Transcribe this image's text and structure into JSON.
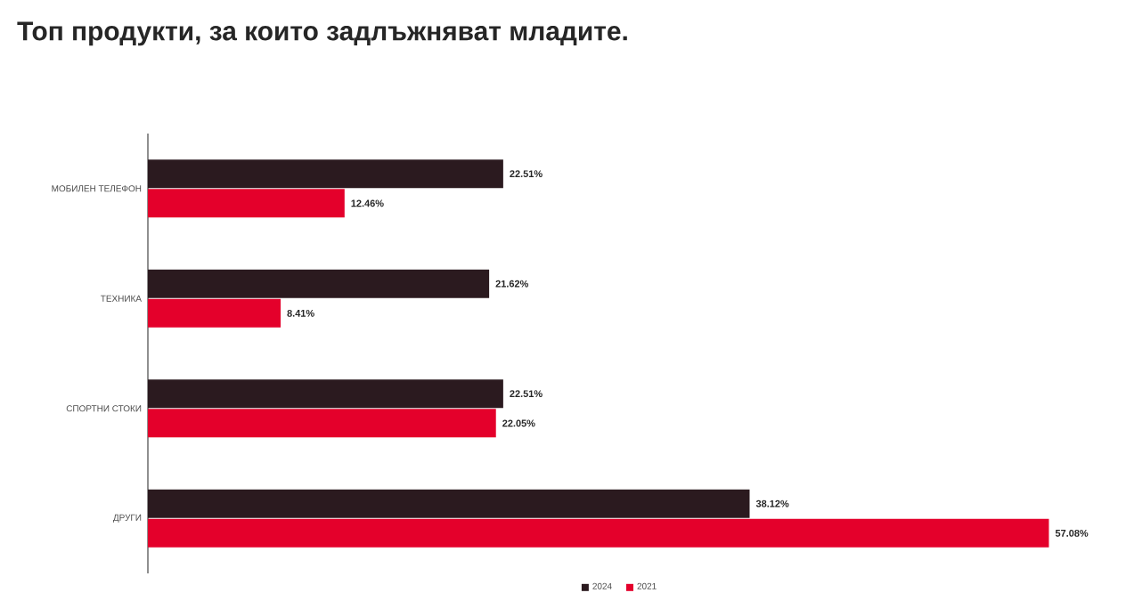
{
  "chart_data": {
    "type": "bar",
    "orientation": "horizontal",
    "title": "Топ продукти, за които задлъжняват младите.",
    "categories": [
      "МОБИЛЕН ТЕЛЕФОН",
      "ТЕХНИКА",
      "СПОРТНИ СТОКИ",
      "ДРУГИ"
    ],
    "series": [
      {
        "name": "2024",
        "color": "#2b1a1f",
        "values": [
          22.51,
          21.62,
          22.51,
          38.12
        ],
        "value_labels": [
          "22.51%",
          "21.62%",
          "22.51%",
          "38.12%"
        ]
      },
      {
        "name": "2021",
        "color": "#e4002b",
        "values": [
          12.46,
          8.41,
          22.05,
          57.08
        ],
        "value_labels": [
          "12.46%",
          "8.41%",
          "22.05%",
          "57.08%"
        ]
      }
    ],
    "legend": "bottom"
  }
}
